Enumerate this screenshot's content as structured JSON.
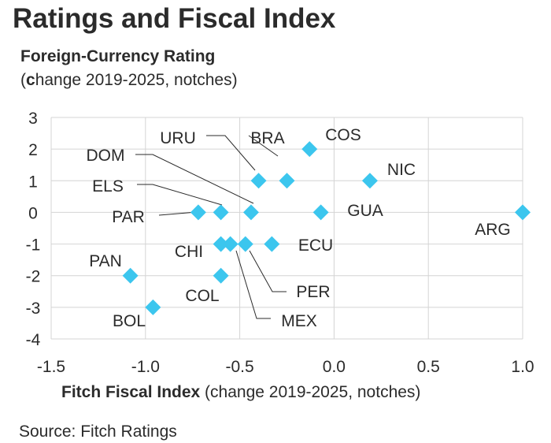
{
  "title": "Ratings and Fiscal Index",
  "subtitle": "Foreign-Currency Rating",
  "subtitle2_open": "(",
  "subtitle2_bold": "c",
  "subtitle2_rest": "hange 2019-2025, notches)",
  "source": "Source: Fitch Ratings",
  "chart_data": {
    "type": "scatter",
    "title": "Ratings and Fiscal Index",
    "ylabel": "Foreign-Currency Rating (change 2019-2025, notches)",
    "xlabel_bold": "Fitch Fiscal Index",
    "xlabel_rest": " (change 2019-2025, notches)",
    "xlim": [
      -1.5,
      1.0
    ],
    "ylim": [
      -4,
      3
    ],
    "xticks": [
      -1.5,
      -1.0,
      -0.5,
      0.0,
      0.5,
      1.0
    ],
    "xtick_labels": [
      "-1.5",
      "-1.0",
      "-0.5",
      "0.0",
      "0.5",
      "1.0"
    ],
    "yticks": [
      3,
      2,
      1,
      0,
      -1,
      -2,
      -3,
      -4
    ],
    "ytick_labels": [
      "3",
      "2",
      "1",
      "0",
      "-1",
      "-2",
      "-3",
      "-4"
    ],
    "grid": true,
    "marker_color": "#3cc6ee",
    "points": [
      {
        "label": "COS",
        "x": -0.13,
        "y": 2
      },
      {
        "label": "BRA",
        "x": -0.25,
        "y": 1
      },
      {
        "label": "URU",
        "x": -0.4,
        "y": 1
      },
      {
        "label": "NIC",
        "x": 0.19,
        "y": 1
      },
      {
        "label": "DOM",
        "x": -0.44,
        "y": 0
      },
      {
        "label": "ELS",
        "x": -0.6,
        "y": 0
      },
      {
        "label": "PAR",
        "x": -0.72,
        "y": 0
      },
      {
        "label": "GUA",
        "x": -0.07,
        "y": 0
      },
      {
        "label": "ARG",
        "x": 1.0,
        "y": 0
      },
      {
        "label": "ECU",
        "x": -0.33,
        "y": -1
      },
      {
        "label": "PER",
        "x": -0.47,
        "y": -1
      },
      {
        "label": "MEX",
        "x": -0.55,
        "y": -1
      },
      {
        "label": "CHI",
        "x": -0.6,
        "y": -1
      },
      {
        "label": "PAN",
        "x": -1.08,
        "y": -2
      },
      {
        "label": "COL",
        "x": -0.6,
        "y": -2
      },
      {
        "label": "BOL",
        "x": -0.96,
        "y": -3
      }
    ]
  }
}
